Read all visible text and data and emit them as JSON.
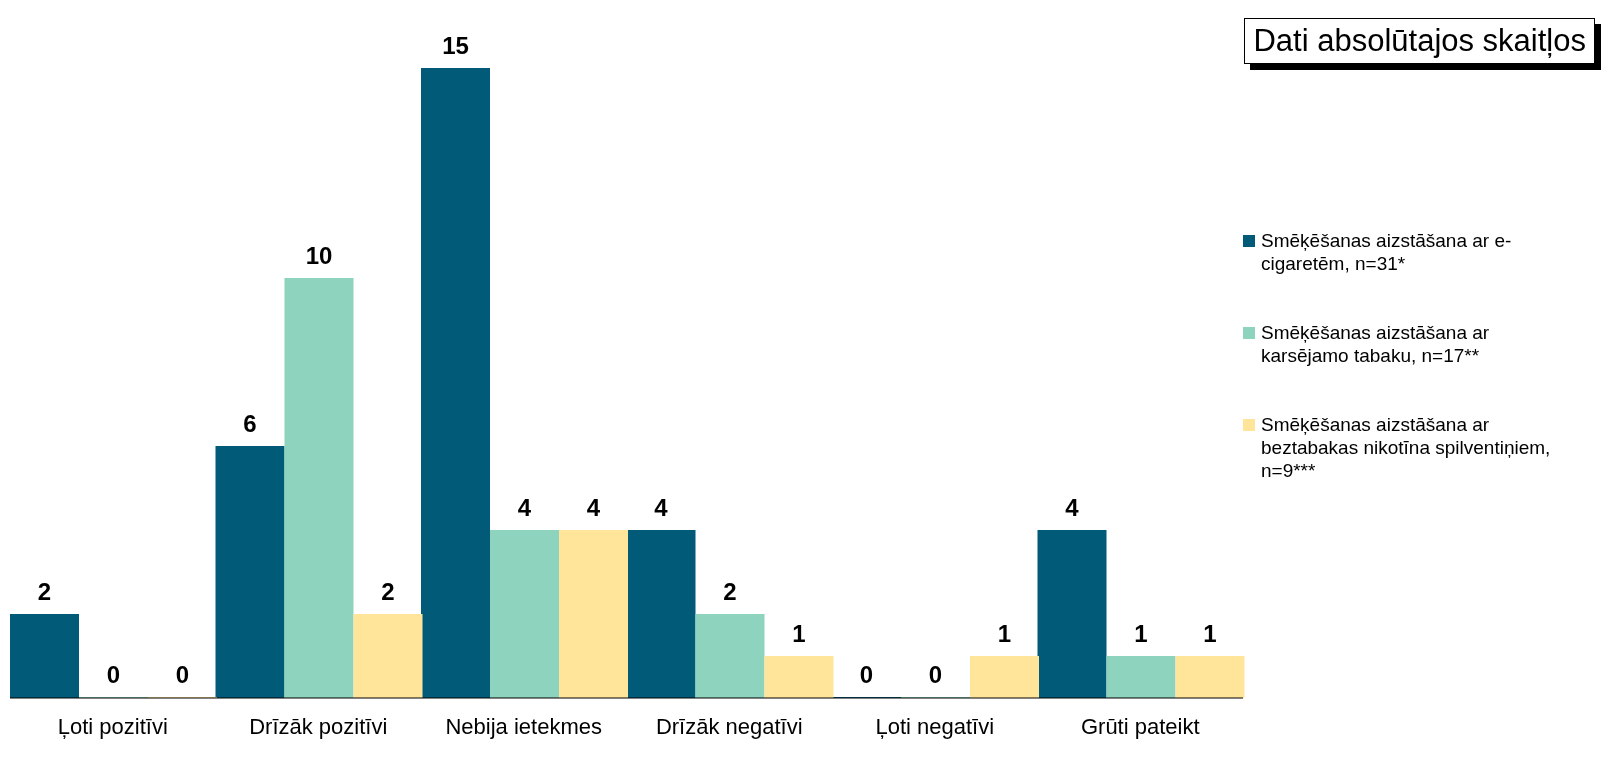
{
  "chart_data": {
    "type": "bar",
    "annotations": [
      "Dati absolūtajos skaitļos"
    ],
    "categories": [
      "Ļoti pozitīvi",
      "Drīzāk pozitīvi",
      "Nebija ietekmes",
      "Drīzāk negatīvi",
      "Ļoti negatīvi",
      "Grūti pateikt"
    ],
    "series": [
      {
        "name": "Smēķēšanas aizstāšana ar e-cigaretēm, n=31*",
        "color": "#005a78",
        "values": [
          2,
          6,
          15,
          4,
          0,
          4
        ]
      },
      {
        "name": "Smēķēšanas aizstāšana ar karsējamo tabaku, n=17**",
        "color": "#8dd3be",
        "values": [
          0,
          10,
          4,
          2,
          0,
          1
        ]
      },
      {
        "name": "Smēķēšanas aizstāšana ar beztabakas nikotīna spilventiņiem, n=9***",
        "color": "#ffe599",
        "values": [
          0,
          2,
          4,
          1,
          1,
          1
        ]
      }
    ],
    "data_labels": true,
    "legend": "right",
    "grid": false
  }
}
